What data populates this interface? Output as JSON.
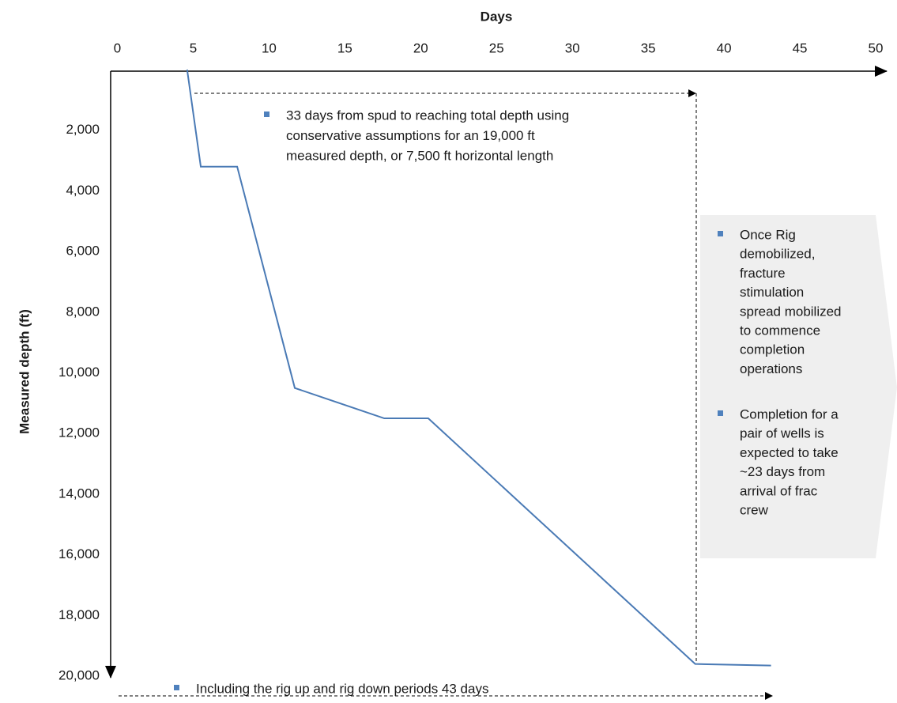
{
  "chart_data": {
    "type": "line",
    "x_label": "Days",
    "y_label": "Measured depth (ft)",
    "x": [
      4.6,
      5.5,
      7.9,
      11.7,
      17.6,
      20.5,
      38.1,
      43.1
    ],
    "values": [
      0,
      3200,
      3200,
      10500,
      11500,
      11500,
      19600,
      19650
    ],
    "color": "#4a7ab5",
    "xlim": [
      0,
      50
    ],
    "xticks": [
      0,
      5,
      10,
      15,
      20,
      25,
      30,
      35,
      40,
      45,
      50
    ],
    "ylim": [
      0,
      20000
    ],
    "yticks": [
      {
        "value": 2000,
        "label": "2,000"
      },
      {
        "value": 4000,
        "label": "4,000"
      },
      {
        "value": 6000,
        "label": "6,000"
      },
      {
        "value": 8000,
        "label": "8,000"
      },
      {
        "value": 10000,
        "label": "10,000"
      },
      {
        "value": 12000,
        "label": "12,000"
      },
      {
        "value": 14000,
        "label": "14,000"
      },
      {
        "value": 16000,
        "label": "16,000"
      },
      {
        "value": 18000,
        "label": "18,000"
      },
      {
        "value": 20000,
        "label": "20,000"
      }
    ],
    "y_inverted": true,
    "x_axis_position": "top",
    "grid": false,
    "annotations": {
      "drilling": [
        "33 days from spud to reaching total depth using",
        "conservative assumptions for an 19,000 ft",
        "measured depth, or 7,500 ft horizontal length"
      ],
      "callout": [
        [
          "Once Rig",
          "demobilized,",
          "fracture",
          "stimulation",
          "spread mobilized",
          "to commence",
          "completion",
          "operations"
        ],
        [
          "Completion for a",
          "pair of wells is",
          "expected to take",
          "~23 days from",
          "arrival of frac",
          "crew"
        ]
      ],
      "total": [
        "Including the rig up and rig down periods 43 days"
      ]
    }
  }
}
